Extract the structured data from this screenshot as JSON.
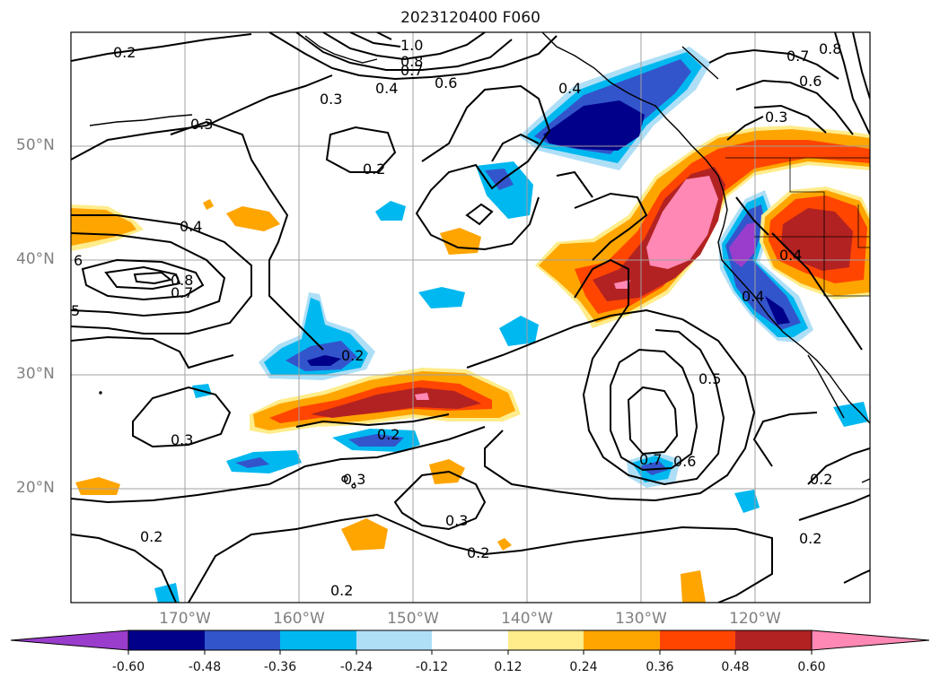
{
  "title": "2023120400 F060",
  "map": {
    "lat_labels": [
      "50°N",
      "40°N",
      "30°N",
      "20°N"
    ],
    "lon_labels": [
      "170°W",
      "160°W",
      "150°W",
      "140°W",
      "130°W",
      "120°W"
    ],
    "lat_range": [
      10,
      60
    ],
    "lon_range": [
      -180,
      -110
    ],
    "grid": true,
    "contour_labels": [
      "0.2",
      "0.3",
      "0.4",
      "0.5",
      "0.6",
      "0.7",
      "0.8",
      "1.0"
    ]
  },
  "colorbar": {
    "extend": "both",
    "ticks": [
      "-0.60",
      "-0.48",
      "-0.36",
      "-0.24",
      "-0.12",
      "0.12",
      "0.24",
      "0.36",
      "0.48",
      "0.60"
    ],
    "colors": [
      "#9a3dcc",
      "#00008b",
      "#3355cc",
      "#00b8f0",
      "#aedff7",
      "#ffffff",
      "#ffec8b",
      "#ffa500",
      "#ff4500",
      "#b22222",
      "#ff88b4"
    ]
  }
}
